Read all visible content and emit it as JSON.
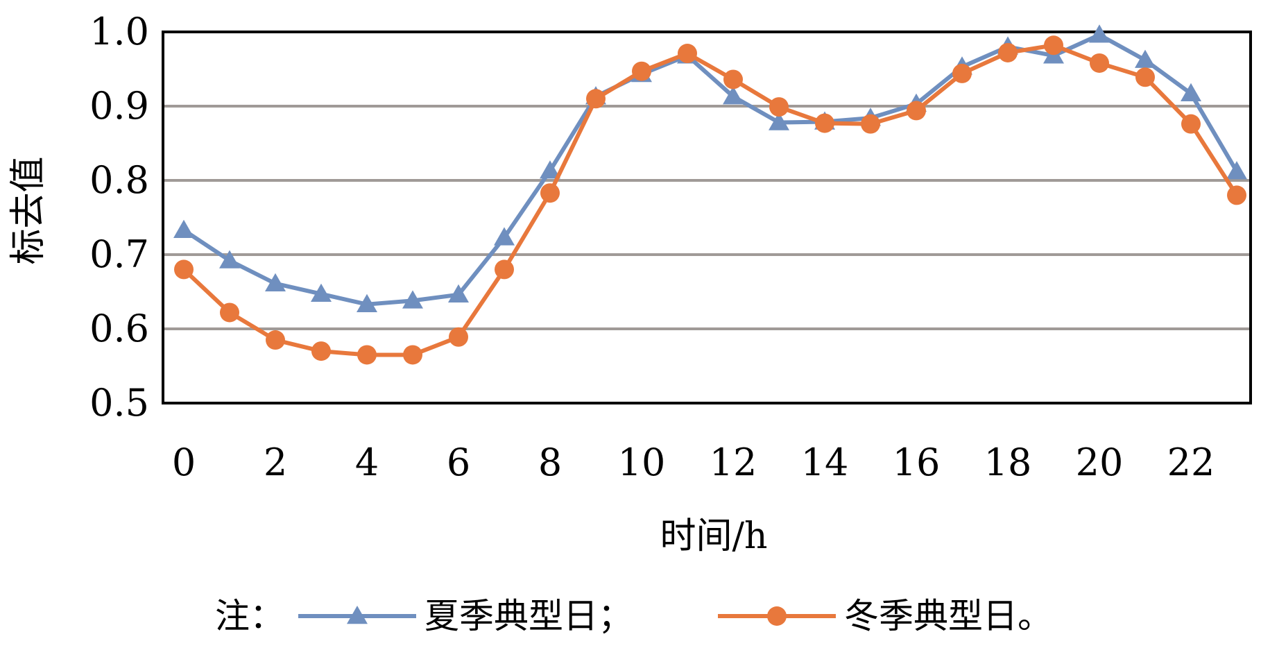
{
  "chart_data": {
    "type": "line",
    "xlabel": "时间/h",
    "ylabel": "标去值",
    "x": [
      0,
      1,
      2,
      3,
      4,
      5,
      6,
      7,
      8,
      9,
      10,
      11,
      12,
      13,
      14,
      15,
      16,
      17,
      18,
      19,
      20,
      21,
      22,
      23
    ],
    "x_tick_labels": [
      "0",
      "2",
      "4",
      "6",
      "8",
      "10",
      "12",
      "14",
      "16",
      "18",
      "20",
      "22"
    ],
    "y_tick_labels": [
      "1.0",
      "0.9",
      "0.8",
      "0.7",
      "0.6",
      "0.5"
    ],
    "ylim": [
      0.5,
      1.0
    ],
    "grid": true,
    "legend_position": "bottom",
    "legend_prefix": "注：",
    "series": [
      {
        "name": "夏季典型日；",
        "color": "#6f8fbf",
        "marker": "triangle",
        "values": [
          0.733,
          0.692,
          0.661,
          0.647,
          0.633,
          0.638,
          0.646,
          0.723,
          0.813,
          0.913,
          0.943,
          0.968,
          0.913,
          0.878,
          0.879,
          0.884,
          0.903,
          0.953,
          0.98,
          0.968,
          0.996,
          0.962,
          0.917,
          0.812
        ]
      },
      {
        "name": "冬季典型日。",
        "color": "#e8783c",
        "marker": "circle",
        "values": [
          0.68,
          0.622,
          0.585,
          0.57,
          0.565,
          0.565,
          0.589,
          0.68,
          0.783,
          0.91,
          0.947,
          0.971,
          0.936,
          0.899,
          0.877,
          0.876,
          0.894,
          0.944,
          0.972,
          0.982,
          0.958,
          0.939,
          0.876,
          0.78
        ]
      }
    ]
  }
}
